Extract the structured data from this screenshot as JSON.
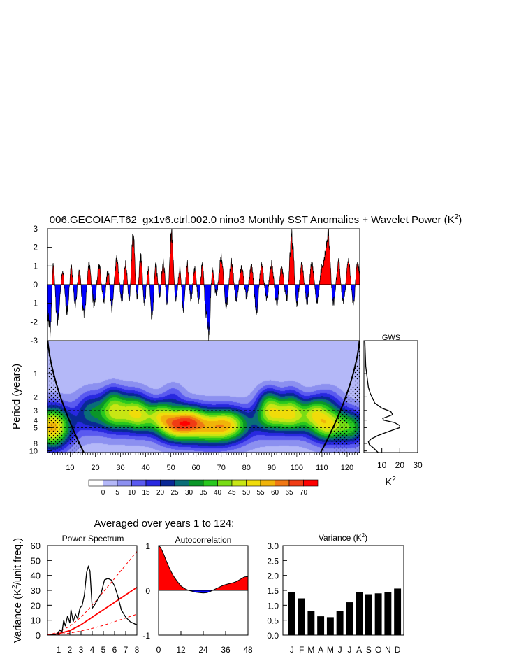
{
  "title": {
    "main": "006.GECOIAF.T62_gx1v6.ctrl.002.0 nino3 Monthly SST Anomalies + Wavelet Power (K",
    "sup": "2",
    "close": ")"
  },
  "panel_subtitle": "Averaged over years 1 to 124:",
  "colorbar": {
    "colors": [
      "#ffffff",
      "#b4b8f8",
      "#8c90f0",
      "#5a5af0",
      "#2828e0",
      "#0a2896",
      "#0a6e78",
      "#0a9628",
      "#28c81e",
      "#78dc14",
      "#c8e614",
      "#f0dc0a",
      "#f0b40a",
      "#f07814",
      "#f03c14",
      "#ff0000"
    ],
    "labels": [
      "0",
      "5",
      "10",
      "15",
      "20",
      "25",
      "30",
      "35",
      "40",
      "45",
      "50",
      "55",
      "60",
      "65",
      "70"
    ]
  },
  "chart_data": [
    {
      "id": "sst-anomaly",
      "type": "area",
      "title": "nino3 Monthly SST Anomalies",
      "xlim": [
        1,
        125
      ],
      "ylim": [
        -3,
        3
      ],
      "yticks": [
        "-3",
        "-2",
        "-1",
        "0",
        "1",
        "2",
        "3"
      ],
      "positive_color": "#ff0000",
      "negative_color": "#0000ff",
      "peaks": [
        {
          "x": 1.0,
          "y": -1.8
        },
        {
          "x": 2.0,
          "y": -3.0
        },
        {
          "x": 3.2,
          "y": 1.1
        },
        {
          "x": 5.0,
          "y": -2.2
        },
        {
          "x": 7.0,
          "y": 0.7
        },
        {
          "x": 8.8,
          "y": -1.6
        },
        {
          "x": 10.5,
          "y": 1.0
        },
        {
          "x": 12.0,
          "y": -1.3
        },
        {
          "x": 13.5,
          "y": 0.8
        },
        {
          "x": 15.5,
          "y": -1.8
        },
        {
          "x": 17.5,
          "y": 1.2
        },
        {
          "x": 19.5,
          "y": -1.2
        },
        {
          "x": 21.5,
          "y": 1.1
        },
        {
          "x": 23.5,
          "y": -1.0
        },
        {
          "x": 25.0,
          "y": 0.9
        },
        {
          "x": 26.5,
          "y": -1.4
        },
        {
          "x": 28.5,
          "y": 1.6
        },
        {
          "x": 30.5,
          "y": -1.0
        },
        {
          "x": 32.0,
          "y": 1.3
        },
        {
          "x": 33.5,
          "y": -0.9
        },
        {
          "x": 35.0,
          "y": 3.0
        },
        {
          "x": 36.5,
          "y": -0.8
        },
        {
          "x": 38.0,
          "y": 1.7
        },
        {
          "x": 39.5,
          "y": -1.1
        },
        {
          "x": 41.0,
          "y": 1.0
        },
        {
          "x": 42.5,
          "y": -2.0
        },
        {
          "x": 44.0,
          "y": 1.2
        },
        {
          "x": 45.5,
          "y": -0.7
        },
        {
          "x": 47.0,
          "y": 1.4
        },
        {
          "x": 48.5,
          "y": -1.0
        },
        {
          "x": 50.3,
          "y": 3.0
        },
        {
          "x": 52.0,
          "y": -0.9
        },
        {
          "x": 53.5,
          "y": 1.0
        },
        {
          "x": 55.0,
          "y": -1.5
        },
        {
          "x": 56.5,
          "y": 1.2
        },
        {
          "x": 58.0,
          "y": -0.8
        },
        {
          "x": 59.5,
          "y": 1.0
        },
        {
          "x": 61.0,
          "y": -1.0
        },
        {
          "x": 62.5,
          "y": 1.2
        },
        {
          "x": 64.0,
          "y": -1.8
        },
        {
          "x": 65.0,
          "y": -3.0
        },
        {
          "x": 66.5,
          "y": 0.9
        },
        {
          "x": 68.0,
          "y": -0.6
        },
        {
          "x": 70.0,
          "y": 1.7
        },
        {
          "x": 72.0,
          "y": -1.3
        },
        {
          "x": 74.0,
          "y": 1.3
        },
        {
          "x": 76.0,
          "y": -0.9
        },
        {
          "x": 78.0,
          "y": 1.0
        },
        {
          "x": 80.0,
          "y": -0.7
        },
        {
          "x": 82.0,
          "y": 1.1
        },
        {
          "x": 84.0,
          "y": -1.6
        },
        {
          "x": 86.0,
          "y": 1.2
        },
        {
          "x": 88.0,
          "y": -0.8
        },
        {
          "x": 90.0,
          "y": 1.3
        },
        {
          "x": 92.0,
          "y": -1.1
        },
        {
          "x": 94.0,
          "y": 1.0
        },
        {
          "x": 96.0,
          "y": -0.9
        },
        {
          "x": 98.0,
          "y": 3.0
        },
        {
          "x": 100.0,
          "y": -1.2
        },
        {
          "x": 102.0,
          "y": 1.2
        },
        {
          "x": 104.0,
          "y": -1.1
        },
        {
          "x": 106.0,
          "y": 1.3
        },
        {
          "x": 108.0,
          "y": -1.0
        },
        {
          "x": 110.0,
          "y": 1.0
        },
        {
          "x": 112.5,
          "y": 3.0
        },
        {
          "x": 114.5,
          "y": -1.1
        },
        {
          "x": 116.5,
          "y": 1.3
        },
        {
          "x": 118.5,
          "y": -1.0
        },
        {
          "x": 120.5,
          "y": 1.4
        },
        {
          "x": 122.5,
          "y": -1.1
        },
        {
          "x": 124.0,
          "y": 1.2
        },
        {
          "x": 125.0,
          "y": 0.8
        }
      ]
    },
    {
      "id": "wavelet-power",
      "type": "heatmap",
      "ylabel": "Period (years)",
      "xlim": [
        1,
        125
      ],
      "xticks": [
        "10",
        "20",
        "30",
        "40",
        "50",
        "60",
        "70",
        "80",
        "90",
        "100",
        "110",
        "120"
      ],
      "yticks": [
        "1",
        "2",
        "3",
        "4",
        "5",
        "8",
        "10"
      ],
      "ytick_values": [
        1,
        2,
        3,
        4,
        5,
        8,
        10
      ],
      "ylim": [
        0.375,
        10.5
      ],
      "dashed_periods": [
        2,
        3,
        4,
        5
      ],
      "blobs": [
        {
          "x": 3,
          "p": 5.0,
          "sx": 5,
          "sy": 0.2,
          "a": 52
        },
        {
          "x": 18,
          "p": 3.0,
          "sx": 4,
          "sy": 0.18,
          "a": 22
        },
        {
          "x": 27,
          "p": 3.2,
          "sx": 4,
          "sy": 0.17,
          "a": 34
        },
        {
          "x": 37,
          "p": 3.5,
          "sx": 5,
          "sy": 0.16,
          "a": 40
        },
        {
          "x": 46,
          "p": 3.2,
          "sx": 3,
          "sy": 0.13,
          "a": 18
        },
        {
          "x": 51,
          "p": 4.5,
          "sx": 5,
          "sy": 0.16,
          "a": 42
        },
        {
          "x": 58,
          "p": 3.8,
          "sx": 4,
          "sy": 0.14,
          "a": 20
        },
        {
          "x": 66,
          "p": 5.0,
          "sx": 9,
          "sy": 0.17,
          "a": 46
        },
        {
          "x": 74,
          "p": 4.3,
          "sx": 5,
          "sy": 0.15,
          "a": 18
        },
        {
          "x": 89,
          "p": 3.2,
          "sx": 4,
          "sy": 0.17,
          "a": 34
        },
        {
          "x": 98,
          "p": 3.5,
          "sx": 5,
          "sy": 0.16,
          "a": 40
        },
        {
          "x": 107,
          "p": 3.0,
          "sx": 3,
          "sy": 0.13,
          "a": 18
        },
        {
          "x": 112,
          "p": 4.5,
          "sx": 5,
          "sy": 0.17,
          "a": 44
        },
        {
          "x": 122,
          "p": 5.0,
          "sx": 4,
          "sy": 0.16,
          "a": 26
        },
        {
          "x": 27,
          "p": 1.9,
          "sx": 3,
          "sy": 0.12,
          "a": 12
        },
        {
          "x": 35,
          "p": 2.2,
          "sx": 4,
          "sy": 0.14,
          "a": 12
        },
        {
          "x": 51,
          "p": 1.9,
          "sx": 3,
          "sy": 0.12,
          "a": 10
        },
        {
          "x": 89,
          "p": 2.0,
          "sx": 3,
          "sy": 0.12,
          "a": 12
        },
        {
          "x": 98,
          "p": 2.1,
          "sx": 3,
          "sy": 0.14,
          "a": 12
        },
        {
          "x": 112,
          "p": 2.2,
          "sx": 4,
          "sy": 0.13,
          "a": 12
        }
      ],
      "coi_apex_period": 1.3
    },
    {
      "id": "global-wavelet-spectrum",
      "type": "line",
      "title": "GWS",
      "xlabel": "K",
      "xlabel_sup": "2",
      "xticks": [
        "10",
        "20",
        "30"
      ],
      "xlim": [
        0,
        30
      ],
      "period": [
        0.375,
        0.8,
        1.0,
        1.5,
        1.8,
        2.0,
        2.4,
        2.8,
        3.1,
        3.4,
        3.8,
        4.0,
        4.3,
        4.7,
        5.0,
        5.6,
        6.3,
        7.0,
        7.6,
        8.3,
        9.0,
        10.5
      ],
      "power": [
        0.5,
        1.0,
        1.5,
        2.5,
        3.5,
        4.5,
        6.0,
        10.0,
        15.0,
        16.0,
        10.5,
        11.0,
        17.0,
        20.0,
        20.0,
        14.0,
        8.0,
        4.0,
        2.5,
        3.0,
        5.0,
        8.0
      ]
    },
    {
      "id": "power-spectrum",
      "type": "line",
      "title": "Power Spectrum",
      "ylabel": "Variance (K",
      "ylabel_sup": "2",
      "ylabel_end": "/unit freq.)",
      "xticks": [
        "1",
        "2",
        "3",
        "4",
        "5",
        "6",
        "7",
        "8"
      ],
      "yticks": [
        "0",
        "10",
        "20",
        "30",
        "40",
        "50",
        "60"
      ],
      "xlim": [
        0,
        8
      ],
      "ylim": [
        0,
        60
      ],
      "x": [
        0.2,
        0.6,
        0.9,
        1.1,
        1.3,
        1.45,
        1.6,
        1.8,
        2.0,
        2.1,
        2.3,
        2.5,
        2.7,
        2.9,
        3.1,
        3.3,
        3.5,
        3.65,
        3.8,
        4.0,
        4.2,
        4.5,
        4.8,
        5.1,
        5.4,
        5.7,
        6.0,
        6.3,
        6.6,
        7.0,
        7.4,
        7.8,
        8.0
      ],
      "y": [
        0,
        0.3,
        1.0,
        3.5,
        2.0,
        10.0,
        6.0,
        13.0,
        8.0,
        17.0,
        9.0,
        14.0,
        11.0,
        18.0,
        20.0,
        27.0,
        42.0,
        46.0,
        43.0,
        18.0,
        20.0,
        24.0,
        28.0,
        37.0,
        38.0,
        37.0,
        33.0,
        26.0,
        17.0,
        12.0,
        9.0,
        7.5,
        7.0
      ],
      "red_noise": {
        "x": [
          0,
          1,
          2,
          3,
          4,
          5,
          6,
          7,
          8
        ],
        "mean": [
          0,
          1.0,
          3.0,
          7.0,
          12.0,
          17.0,
          22.0,
          27.0,
          32.0
        ],
        "upper": [
          0,
          2.0,
          6.0,
          12.0,
          20.0,
          29.0,
          38.0,
          47.0,
          56.0
        ],
        "lower": [
          0,
          0.4,
          1.3,
          2.8,
          4.5,
          6.5,
          9.0,
          11.5,
          14.0
        ]
      }
    },
    {
      "id": "autocorrelation",
      "type": "area",
      "title": "Autocorrelation",
      "xticks": [
        "0",
        "12",
        "24",
        "36",
        "48"
      ],
      "yticks": [
        "-1",
        "0",
        "1"
      ],
      "xlim": [
        0,
        48
      ],
      "ylim": [
        -1,
        1
      ],
      "x": [
        0,
        1,
        2,
        3,
        4,
        6,
        8,
        10,
        12,
        14,
        16,
        18,
        20,
        22,
        24,
        26,
        28,
        30,
        32,
        34,
        36,
        38,
        40,
        42,
        44,
        46,
        48
      ],
      "y": [
        1.0,
        0.96,
        0.88,
        0.78,
        0.67,
        0.48,
        0.32,
        0.2,
        0.1,
        0.04,
        0.0,
        -0.02,
        -0.04,
        -0.05,
        -0.06,
        -0.05,
        -0.02,
        0.02,
        0.06,
        0.1,
        0.13,
        0.15,
        0.17,
        0.2,
        0.25,
        0.3,
        0.31
      ]
    },
    {
      "id": "monthly-variance",
      "type": "bar",
      "title": "Variance (K",
      "title_sup": "2",
      "title_close": ")",
      "categories": [
        "J",
        "F",
        "M",
        "A",
        "M",
        "J",
        "J",
        "A",
        "S",
        "O",
        "N",
        "D"
      ],
      "values": [
        1.45,
        1.23,
        0.82,
        0.63,
        0.6,
        0.8,
        1.1,
        1.43,
        1.37,
        1.4,
        1.45,
        1.56
      ],
      "yticks": [
        "0.0",
        "0.5",
        "1.0",
        "1.5",
        "2.0",
        "2.5",
        "3.0"
      ],
      "ylim": [
        0,
        3
      ]
    }
  ]
}
